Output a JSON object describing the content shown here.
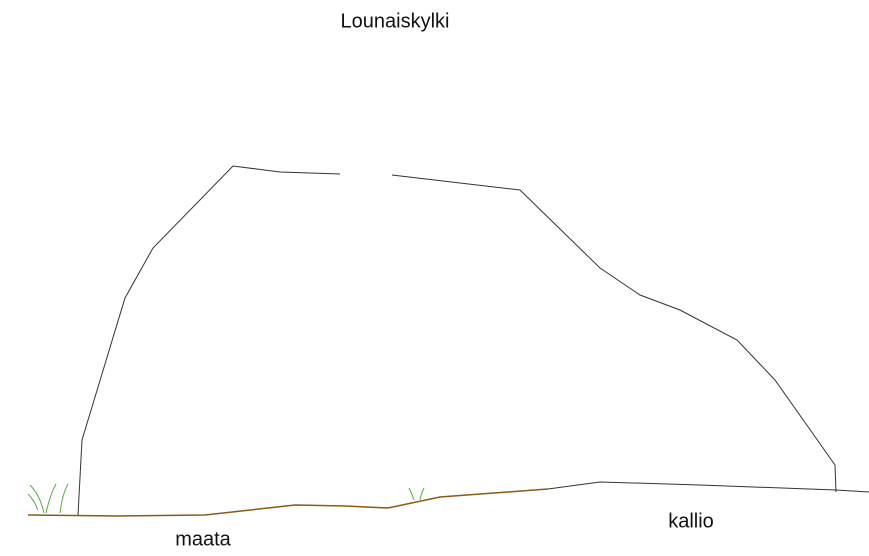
{
  "title": "Lounaiskylki",
  "labels": [
    "maata",
    "kallio"
  ]
}
